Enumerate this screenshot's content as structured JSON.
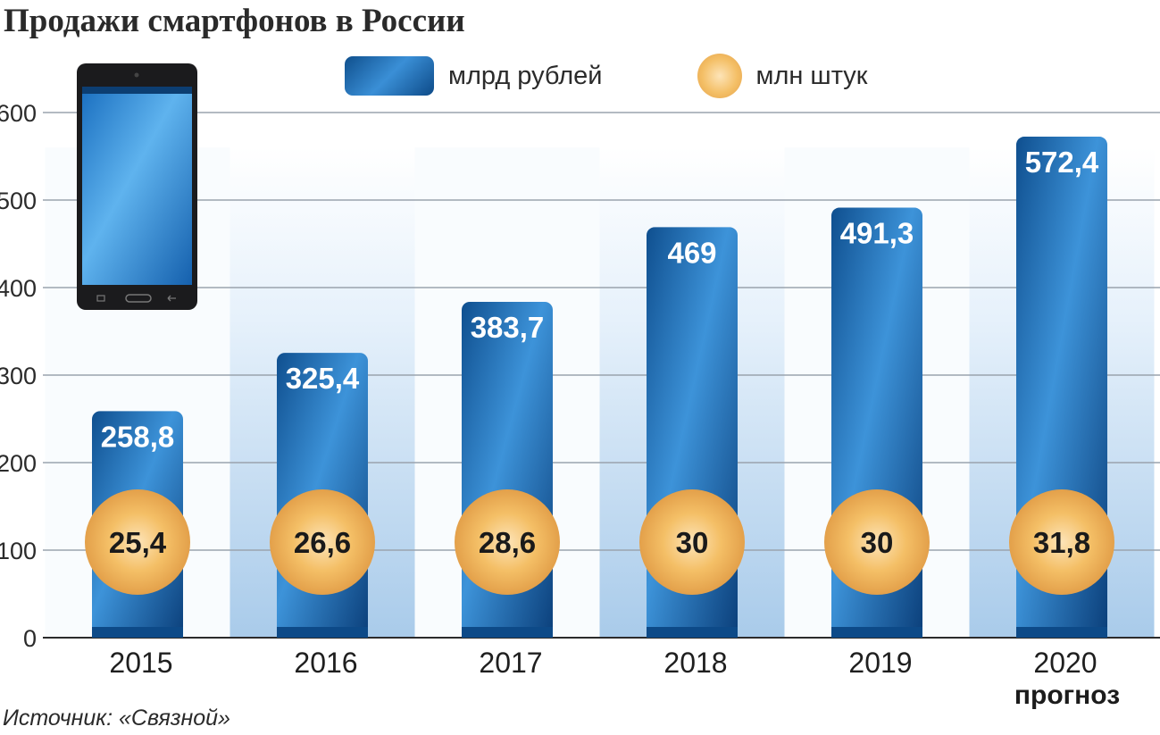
{
  "title": "Продажи смартфонов в России",
  "legend": {
    "bars_label": "млрд рублей",
    "circles_label": "млн штук"
  },
  "source": "Источник: «Связной»",
  "forecast_note": "прогноз",
  "colors": {
    "bar_dark": "#0d4a88",
    "bar_light": "#3d93d9",
    "circle_light": "#fde4b8",
    "circle_dark": "#e3a04a",
    "band_light": "#dcecf8",
    "grid": "#9aa3ad"
  },
  "icons": [
    "smartphone-icon"
  ],
  "chart_data": {
    "type": "bar",
    "categories": [
      "2015",
      "2016",
      "2017",
      "2018",
      "2019",
      "2020"
    ],
    "series": [
      {
        "name": "млрд рублей",
        "values": [
          258.8,
          325.4,
          383.7,
          469,
          491.3,
          572.4
        ],
        "labels": [
          "258,8",
          "325,4",
          "383,7",
          "469",
          "491,3",
          "572,4"
        ]
      },
      {
        "name": "млн штук",
        "values": [
          25.4,
          26.6,
          28.6,
          30,
          30,
          31.8
        ],
        "labels": [
          "25,4",
          "26,6",
          "28,6",
          "30",
          "30",
          "31,8"
        ]
      }
    ],
    "title": "Продажи смартфонов в России",
    "xlabel": "",
    "ylabel": "",
    "ylim": [
      0,
      600
    ],
    "yticks": [
      "0",
      "100",
      "200",
      "300",
      "400",
      "500",
      "600"
    ],
    "grid": true,
    "legend": "top"
  }
}
